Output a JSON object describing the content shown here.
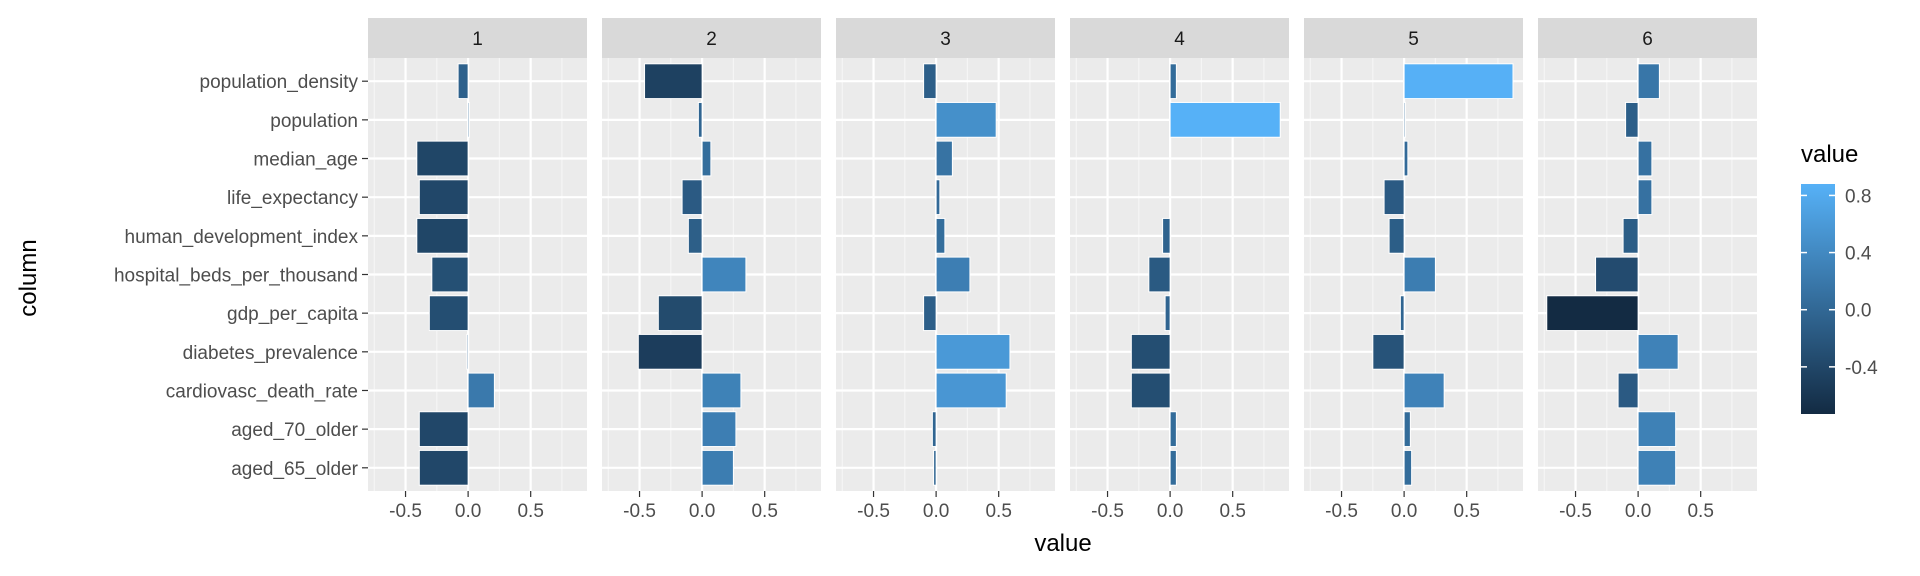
{
  "chart_data": {
    "type": "bar",
    "orientation": "horizontal",
    "facet_labels": [
      "1",
      "2",
      "3",
      "4",
      "5",
      "6"
    ],
    "categories": [
      "population_density",
      "population",
      "median_age",
      "life_expectancy",
      "human_development_index",
      "hospital_beds_per_thousand",
      "gdp_per_capita",
      "diabetes_prevalence",
      "cardiovasc_death_rate",
      "aged_70_older",
      "aged_65_older"
    ],
    "series": [
      {
        "name": "1",
        "values": [
          -0.08,
          0.01,
          -0.41,
          -0.39,
          -0.41,
          -0.29,
          -0.31,
          -0.01,
          0.21,
          -0.39,
          -0.39
        ]
      },
      {
        "name": "2",
        "values": [
          -0.46,
          -0.03,
          0.07,
          -0.16,
          -0.11,
          0.35,
          -0.35,
          -0.51,
          0.31,
          0.27,
          0.25
        ]
      },
      {
        "name": "3",
        "values": [
          -0.1,
          0.48,
          0.13,
          0.03,
          0.07,
          0.27,
          -0.1,
          0.59,
          0.56,
          -0.03,
          -0.02
        ]
      },
      {
        "name": "4",
        "values": [
          0.05,
          0.88,
          0.0,
          0.0,
          -0.06,
          -0.17,
          -0.04,
          -0.31,
          -0.31,
          0.05,
          0.05
        ]
      },
      {
        "name": "5",
        "values": [
          0.87,
          0.01,
          0.03,
          -0.16,
          -0.12,
          0.25,
          -0.03,
          -0.25,
          0.32,
          0.05,
          0.06
        ]
      },
      {
        "name": "6",
        "values": [
          0.17,
          -0.1,
          0.11,
          0.11,
          -0.12,
          -0.34,
          -0.73,
          0.32,
          -0.16,
          0.3,
          0.3
        ]
      }
    ],
    "x_ticks": [
      "-0.5",
      "0.0",
      "0.5"
    ],
    "xlim": [
      -0.8,
      0.95
    ],
    "xlabel": "value",
    "ylabel": "column",
    "grid": true,
    "legend": {
      "title": "value",
      "placement": "right",
      "type": "colorbar",
      "ticks": [
        "0.8",
        "0.4",
        "0.0",
        "-0.4"
      ],
      "range": [
        -0.73,
        0.88
      ],
      "color_low": "#132B43",
      "color_high": "#56B1F7"
    }
  }
}
